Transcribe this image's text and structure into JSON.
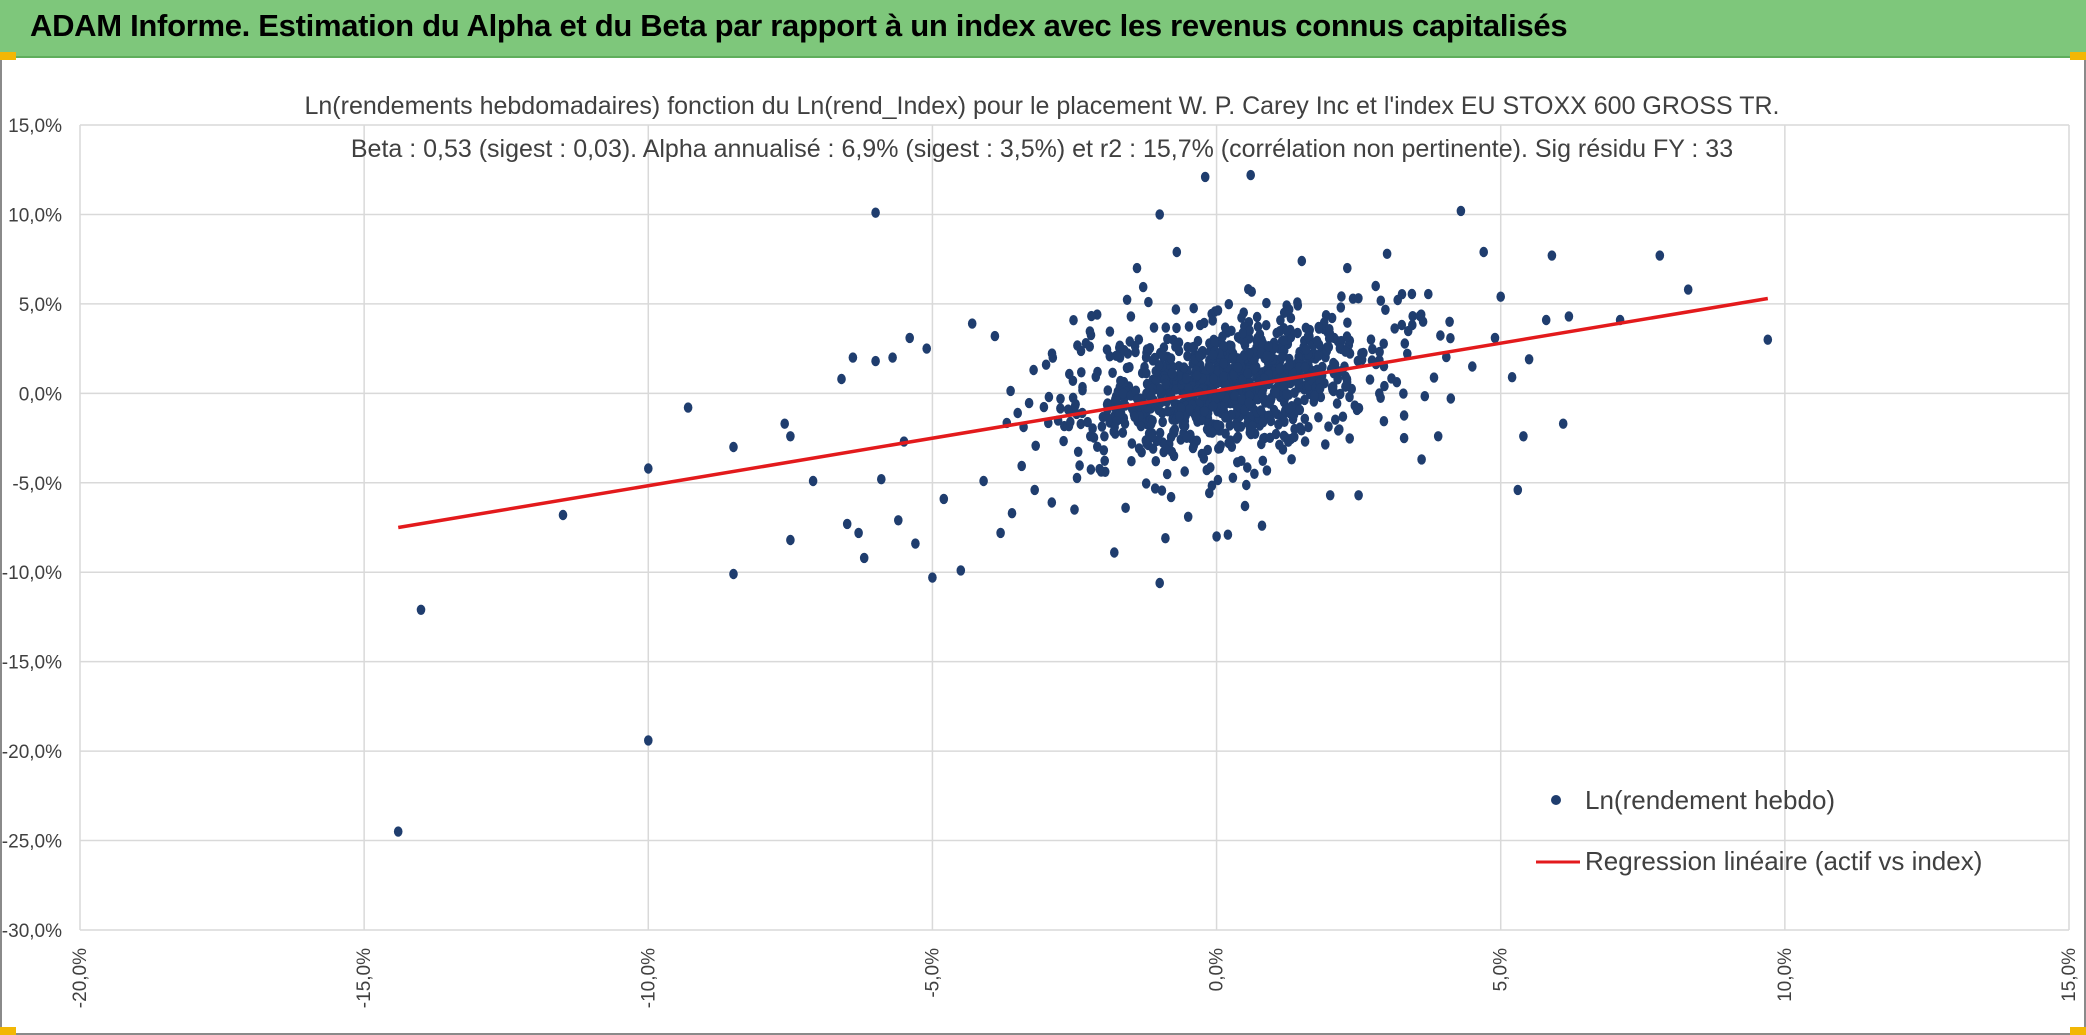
{
  "banner": {
    "title": "ADAM Informe. Estimation du Alpha et du Beta par rapport à un index avec les revenus connus capitalisés"
  },
  "colors": {
    "banner": "#7ec77b",
    "points": "#1f3d6e",
    "regression": "#e31a1c",
    "grid": "#d9d9d9"
  },
  "chart_data": {
    "type": "scatter",
    "title": "Ln(rendements hebdomadaires) fonction du Ln(rend_Index) pour le placement W. P. Carey Inc et l'index EU STOXX 600 GROSS TR.",
    "subtitle": "Beta : 0,53 (sigest : 0,03). Alpha annualisé : 6,9% (sigest : 3,5%) et r2 : 15,7% (corrélation non pertinente). Sig résidu FY : 33",
    "xlabel": "",
    "ylabel": "",
    "xlim": [
      -20,
      15
    ],
    "ylim": [
      -30,
      15
    ],
    "x_ticks": [
      -20,
      -15,
      -10,
      -5,
      0,
      5,
      10,
      15
    ],
    "y_ticks": [
      15,
      10,
      5,
      0,
      -5,
      -10,
      -15,
      -20,
      -25,
      -30
    ],
    "x_tick_labels": [
      "-20,0%",
      "-15,0%",
      "-10,0%",
      "-5,0%",
      "0,0%",
      "5,0%",
      "10,0%",
      "15,0%"
    ],
    "y_tick_labels": [
      "15,0%",
      "10,0%",
      "5,0%",
      "0,0%",
      "-5,0%",
      "-10,0%",
      "-15,0%",
      "-20,0%",
      "-25,0%",
      "-30,0%"
    ],
    "grid": true,
    "legend_position": "bottom-right",
    "legend": [
      {
        "label": "Ln(rendement hebdo)",
        "kind": "marker"
      },
      {
        "label": "Regression linéaire (actif vs index)",
        "kind": "line"
      }
    ],
    "series": [
      {
        "name": "Ln(rendement hebdo)",
        "type": "scatter",
        "points": [
          [
            -14.4,
            -24.5
          ],
          [
            -14.0,
            -12.1
          ],
          [
            -11.5,
            -6.8
          ],
          [
            -10.0,
            -19.4
          ],
          [
            -10.0,
            -4.2
          ],
          [
            -9.3,
            -0.8
          ],
          [
            -8.5,
            -10.1
          ],
          [
            -8.5,
            -3.0
          ],
          [
            -7.6,
            -1.7
          ],
          [
            -7.5,
            -8.2
          ],
          [
            -7.5,
            -2.4
          ],
          [
            -7.1,
            -4.9
          ],
          [
            -6.6,
            0.8
          ],
          [
            -6.5,
            -7.3
          ],
          [
            -6.4,
            2.0
          ],
          [
            -6.3,
            -7.8
          ],
          [
            -6.2,
            -9.2
          ],
          [
            -6.0,
            10.1
          ],
          [
            -6.0,
            1.8
          ],
          [
            -5.9,
            -4.8
          ],
          [
            -5.7,
            2.0
          ],
          [
            -5.6,
            -7.1
          ],
          [
            -5.5,
            -2.7
          ],
          [
            -5.4,
            3.1
          ],
          [
            -5.3,
            -8.4
          ],
          [
            -5.1,
            2.5
          ],
          [
            -5.0,
            -10.3
          ],
          [
            -4.8,
            -5.9
          ],
          [
            -4.5,
            -9.9
          ],
          [
            -4.3,
            3.9
          ],
          [
            -4.1,
            -4.9
          ],
          [
            -3.9,
            3.2
          ],
          [
            -3.8,
            -7.8
          ],
          [
            -3.6,
            -6.7
          ],
          [
            -3.5,
            -1.1
          ],
          [
            -3.2,
            -5.4
          ],
          [
            -3.0,
            1.6
          ],
          [
            -2.9,
            -6.1
          ],
          [
            -2.5,
            -6.5
          ],
          [
            -2.3,
            2.8
          ],
          [
            -2.1,
            4.4
          ],
          [
            -1.8,
            -8.9
          ],
          [
            -1.7,
            2.0
          ],
          [
            -1.6,
            -6.4
          ],
          [
            -1.4,
            7.0
          ],
          [
            -1.2,
            5.1
          ],
          [
            -1.0,
            10.0
          ],
          [
            -1.0,
            -10.6
          ],
          [
            -0.9,
            -8.1
          ],
          [
            -0.8,
            -5.8
          ],
          [
            -0.7,
            7.9
          ],
          [
            -0.5,
            -6.9
          ],
          [
            -0.2,
            12.1
          ],
          [
            0.0,
            -8.0
          ],
          [
            0.2,
            -7.9
          ],
          [
            0.5,
            -6.3
          ],
          [
            0.6,
            12.2
          ],
          [
            0.8,
            -7.4
          ],
          [
            1.5,
            7.4
          ],
          [
            2.0,
            -5.7
          ],
          [
            2.3,
            7.0
          ],
          [
            2.5,
            -5.7
          ],
          [
            2.8,
            6.0
          ],
          [
            3.0,
            7.8
          ],
          [
            3.3,
            -2.5
          ],
          [
            3.6,
            4.4
          ],
          [
            3.9,
            -2.4
          ],
          [
            4.1,
            4.0
          ],
          [
            4.3,
            10.2
          ],
          [
            4.5,
            1.5
          ],
          [
            4.7,
            7.9
          ],
          [
            4.9,
            3.1
          ],
          [
            5.0,
            5.4
          ],
          [
            5.2,
            0.9
          ],
          [
            5.3,
            -5.4
          ],
          [
            5.4,
            -2.4
          ],
          [
            5.5,
            1.9
          ],
          [
            5.8,
            4.1
          ],
          [
            5.9,
            7.7
          ],
          [
            6.1,
            -1.7
          ],
          [
            6.2,
            4.3
          ],
          [
            7.1,
            4.1
          ],
          [
            7.8,
            7.7
          ],
          [
            8.3,
            5.8
          ],
          [
            9.7,
            3.0
          ]
        ],
        "dense_cluster_note": "Ln(rendement hebdo)",
        "cluster": {
          "center": [
            0.2,
            0.4
          ],
          "count": 1050
        }
      },
      {
        "name": "Regression linéaire (actif vs index)",
        "type": "line",
        "points": [
          [
            -14.4,
            -7.5
          ],
          [
            9.7,
            5.3
          ]
        ]
      }
    ]
  }
}
